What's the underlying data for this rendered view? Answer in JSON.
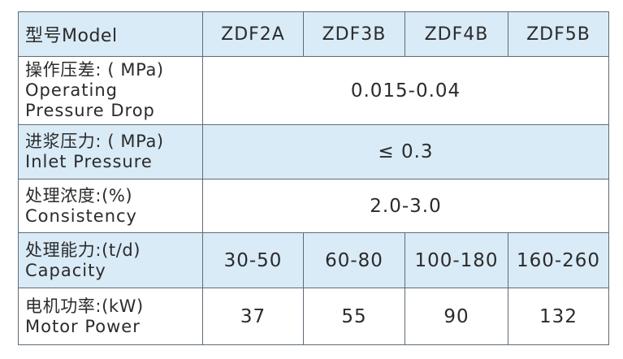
{
  "header": {
    "label": "型号Model",
    "models": [
      "ZDF2A",
      "ZDF3B",
      "ZDF4B",
      "ZDF5B"
    ]
  },
  "rows": [
    {
      "zh": "操作压差: ( MPa)",
      "en1": "Operating",
      "en2": "Pressure Drop",
      "value": "0.015-0.04"
    },
    {
      "zh": "进浆压力: ( MPa)",
      "en": "Inlet Pressure",
      "value": "≤ 0.3"
    },
    {
      "zh": "处理浓度:(%)",
      "en": "Consistency",
      "value": "2.0-3.0"
    },
    {
      "zh": "处理能力:(t/d)",
      "en": "Capacity",
      "values": [
        "30-50",
        "60-80",
        "100-180",
        "160-260"
      ]
    },
    {
      "zh": "电机功率:(kW)",
      "en": "Motor Power",
      "values": [
        "37",
        "55",
        "90",
        "132"
      ]
    }
  ],
  "colors": {
    "header_bg": "#d9ebf7",
    "border": "#5f6b76",
    "text": "#2b2b2b"
  }
}
